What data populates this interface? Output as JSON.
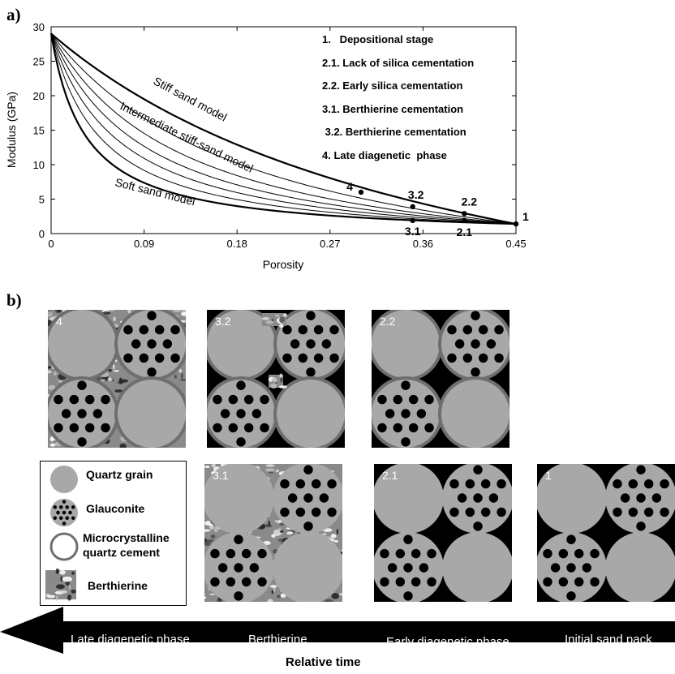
{
  "panel_a_label": "a)",
  "panel_b_label": "b)",
  "chart_data": {
    "type": "line",
    "xlabel": "Porosity",
    "ylabel": "Modulus (GPa)",
    "xlim": [
      0,
      0.45
    ],
    "ylim": [
      0,
      30
    ],
    "xticks": [
      "0",
      "0.09",
      "0.18",
      "0.27",
      "0.36",
      "0.45"
    ],
    "yticks": [
      "0",
      "5",
      "10",
      "15",
      "20",
      "25",
      "30"
    ],
    "start_point": [
      0,
      29
    ],
    "end_point": [
      0.45,
      1.4
    ],
    "curve_labels": [
      "Stiff sand model",
      "Intermediate stiff-sand model",
      "Soft sand model"
    ],
    "points": [
      {
        "label": "1",
        "x": 0.45,
        "y": 1.4
      },
      {
        "label": "2.1",
        "x": 0.4,
        "y": 1.9
      },
      {
        "label": "2.2",
        "x": 0.4,
        "y": 2.9
      },
      {
        "label": "3.1",
        "x": 0.35,
        "y": 1.9
      },
      {
        "label": "3.2",
        "x": 0.35,
        "y": 3.9
      },
      {
        "label": "4",
        "x": 0.3,
        "y": 6.0
      }
    ],
    "legend": [
      "1.   Depositional stage",
      "2.1. Lack of silica cementation",
      "2.2. Early silica cementation",
      "3.1. Berthierine cementation",
      " 3.2. Berthierine cementation",
      "4. Late diagenetic  phase"
    ],
    "colors": {
      "line": "#000000",
      "background": "#ffffff"
    }
  },
  "tiles": [
    {
      "id": "4",
      "label": "4",
      "cement": true,
      "berthierine": "full"
    },
    {
      "id": "3.2",
      "label": "3.2",
      "cement": true,
      "berthierine": "spots"
    },
    {
      "id": "2.2",
      "label": "2.2",
      "cement": true,
      "berthierine": "none"
    },
    {
      "id": "3.1",
      "label": "3.1",
      "cement": false,
      "berthierine": "full"
    },
    {
      "id": "2.1",
      "label": "2.1",
      "cement": false,
      "berthierine": "none"
    },
    {
      "id": "1",
      "label": "1",
      "cement": false,
      "berthierine": "none"
    }
  ],
  "legend_b": {
    "quartz": "Quartz grain",
    "glauconite": "Glauconite",
    "cement_line1": "Microcrystalline",
    "cement_line2": "quartz cement",
    "berthierine": "Berthierine",
    "colors": {
      "grain": "#a8a8a8",
      "cement_rim": "#6e6e6e",
      "pore": "#000000"
    }
  },
  "timeline": {
    "late": "Late diagenetic phase",
    "berthierine": "Berthierine",
    "early": "Early diagenetic phase",
    "initial": "Initial sand pack",
    "caption": "Relative time"
  }
}
